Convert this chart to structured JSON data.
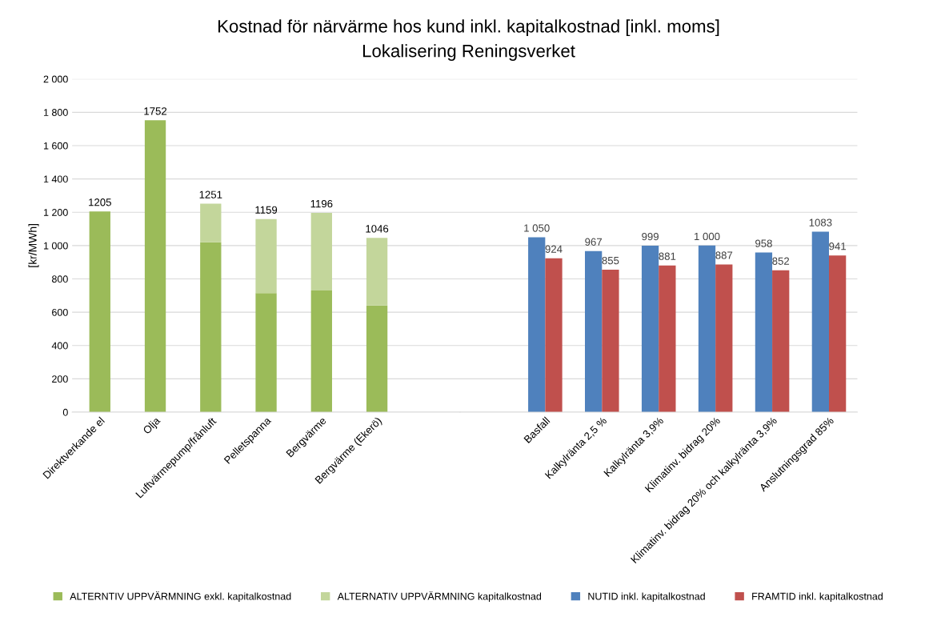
{
  "chart_data": [
    {
      "type": "bar",
      "title": "Kostnad för närvärme hos kund inkl. kapitalkostnad [inkl. moms]",
      "subtitle": "Lokalisering Reningsverket",
      "ylabel": "[kr/MWh]",
      "categories": [
        "Direktverkande el",
        "Olja",
        "Luftvärmepump/frånluft",
        "Pelletspanna",
        "Bergvärme",
        "Bergvärme (Ekerö)"
      ],
      "stacked": true,
      "series": [
        {
          "name": "ALTERNTIV UPPVÄRMNING exkl. kapitalkostnad",
          "color": "#9bbb59",
          "values": [
            1205,
            1752,
            1020,
            715,
            730,
            640
          ]
        },
        {
          "name": "ALTERNATIV UPPVÄRMNING kapitalkostnad",
          "color": "#c3d69b",
          "values": [
            null,
            null,
            231,
            444,
            466,
            406
          ]
        }
      ],
      "totals": [
        "1205",
        "1752",
        "1251",
        "1159",
        "1196",
        "1046"
      ],
      "ylim": [
        0,
        2000
      ],
      "yticks": [
        0,
        {
          "value": 200,
          "label": "200"
        },
        {
          "value": 400,
          "label": "400"
        },
        {
          "value": 600,
          "label": "600"
        },
        {
          "value": 800,
          "label": "800"
        },
        {
          "value": 1000,
          "label": "1 000"
        },
        {
          "value": 1200,
          "label": "1 200"
        },
        {
          "value": 1400,
          "label": "1 400"
        },
        {
          "value": 1600,
          "label": "1 600"
        },
        {
          "value": 1800,
          "label": "1 800"
        },
        {
          "value": 2000,
          "label": "2 000"
        }
      ],
      "grid": "y",
      "legend": "bottom"
    },
    {
      "type": "bar",
      "categories": [
        "Basfall",
        "Kalkylränta 2,5 %",
        "Kalkylränta 3,9%",
        "Klimatinv. bidrag 20%",
        "Klimatinv. bidrag 20% och kalkylränta 3,9%",
        "Anslutningsgrad 85%"
      ],
      "series": [
        {
          "name": "NUTID inkl. kapitalkostnad",
          "color": "#4f81bd",
          "values": [
            1050,
            967,
            999,
            1000,
            958,
            1083
          ],
          "value_labels": [
            "1 050",
            "967",
            "999",
            "1 000",
            "958",
            "1083"
          ]
        },
        {
          "name": "FRAMTID inkl. kapitalkostnad",
          "color": "#c0504d",
          "values": [
            924,
            855,
            881,
            887,
            852,
            941
          ],
          "value_labels": [
            "924",
            "855",
            "881",
            "887",
            "852",
            "941"
          ]
        }
      ],
      "ylim": [
        0,
        2000
      ],
      "yticks": [
        0,
        200,
        400,
        600,
        800,
        1000,
        1200,
        1400,
        1600,
        1800,
        2000
      ],
      "tick_labels": "x",
      "grid": "y",
      "legend": "bottom"
    }
  ]
}
